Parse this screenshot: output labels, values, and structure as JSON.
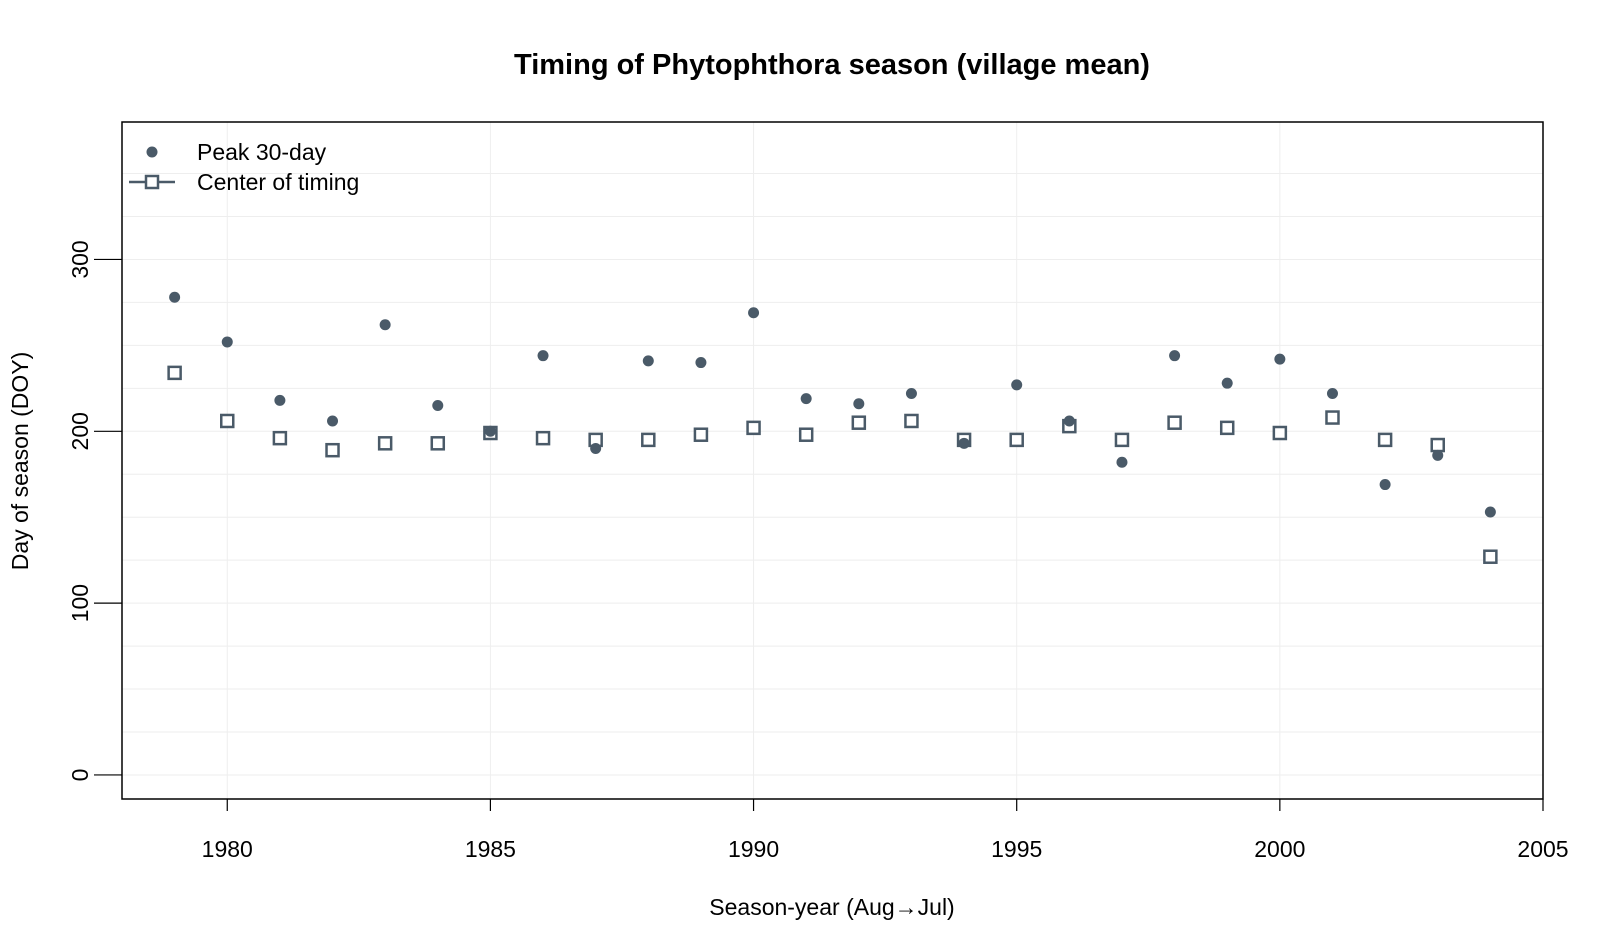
{
  "chart_data": {
    "type": "scatter",
    "title": "Timing of Phytophthora season (village mean)",
    "xlabel": "Season-year (Aug→Jul)",
    "ylabel": "Day of season (DOY)",
    "xlim": [
      1978,
      2005
    ],
    "ylim": [
      -14,
      380
    ],
    "x_ticks": [
      1980,
      1985,
      1990,
      1995,
      2000,
      2005
    ],
    "y_ticks": [
      0,
      100,
      200,
      300
    ],
    "x_tick_labels": [
      "1980",
      "1985",
      "1990",
      "1995",
      "2000",
      "2005"
    ],
    "y_tick_labels": [
      "0",
      "100",
      "200",
      "300"
    ],
    "grid": true,
    "legend_position": "top-left",
    "color": "#4a5a68",
    "grid_color": "#eeeeee",
    "x": [
      1979,
      1980,
      1981,
      1982,
      1983,
      1984,
      1985,
      1986,
      1987,
      1988,
      1989,
      1990,
      1991,
      1992,
      1993,
      1994,
      1995,
      1996,
      1997,
      1998,
      1999,
      2000,
      2001,
      2002,
      2003,
      2004
    ],
    "series": [
      {
        "name": "Peak 30-day",
        "marker": "filled-circle",
        "values": [
          278,
          252,
          218,
          206,
          262,
          215,
          200,
          244,
          190,
          241,
          240,
          269,
          219,
          216,
          222,
          193,
          227,
          206,
          182,
          244,
          228,
          242,
          222,
          169,
          186,
          153
        ]
      },
      {
        "name": "Center of timing",
        "marker": "open-square",
        "values": [
          234,
          206,
          196,
          189,
          193,
          193,
          199,
          196,
          195,
          195,
          198,
          202,
          198,
          205,
          206,
          195,
          195,
          203,
          195,
          205,
          202,
          199,
          208,
          195,
          192,
          127
        ]
      }
    ]
  }
}
